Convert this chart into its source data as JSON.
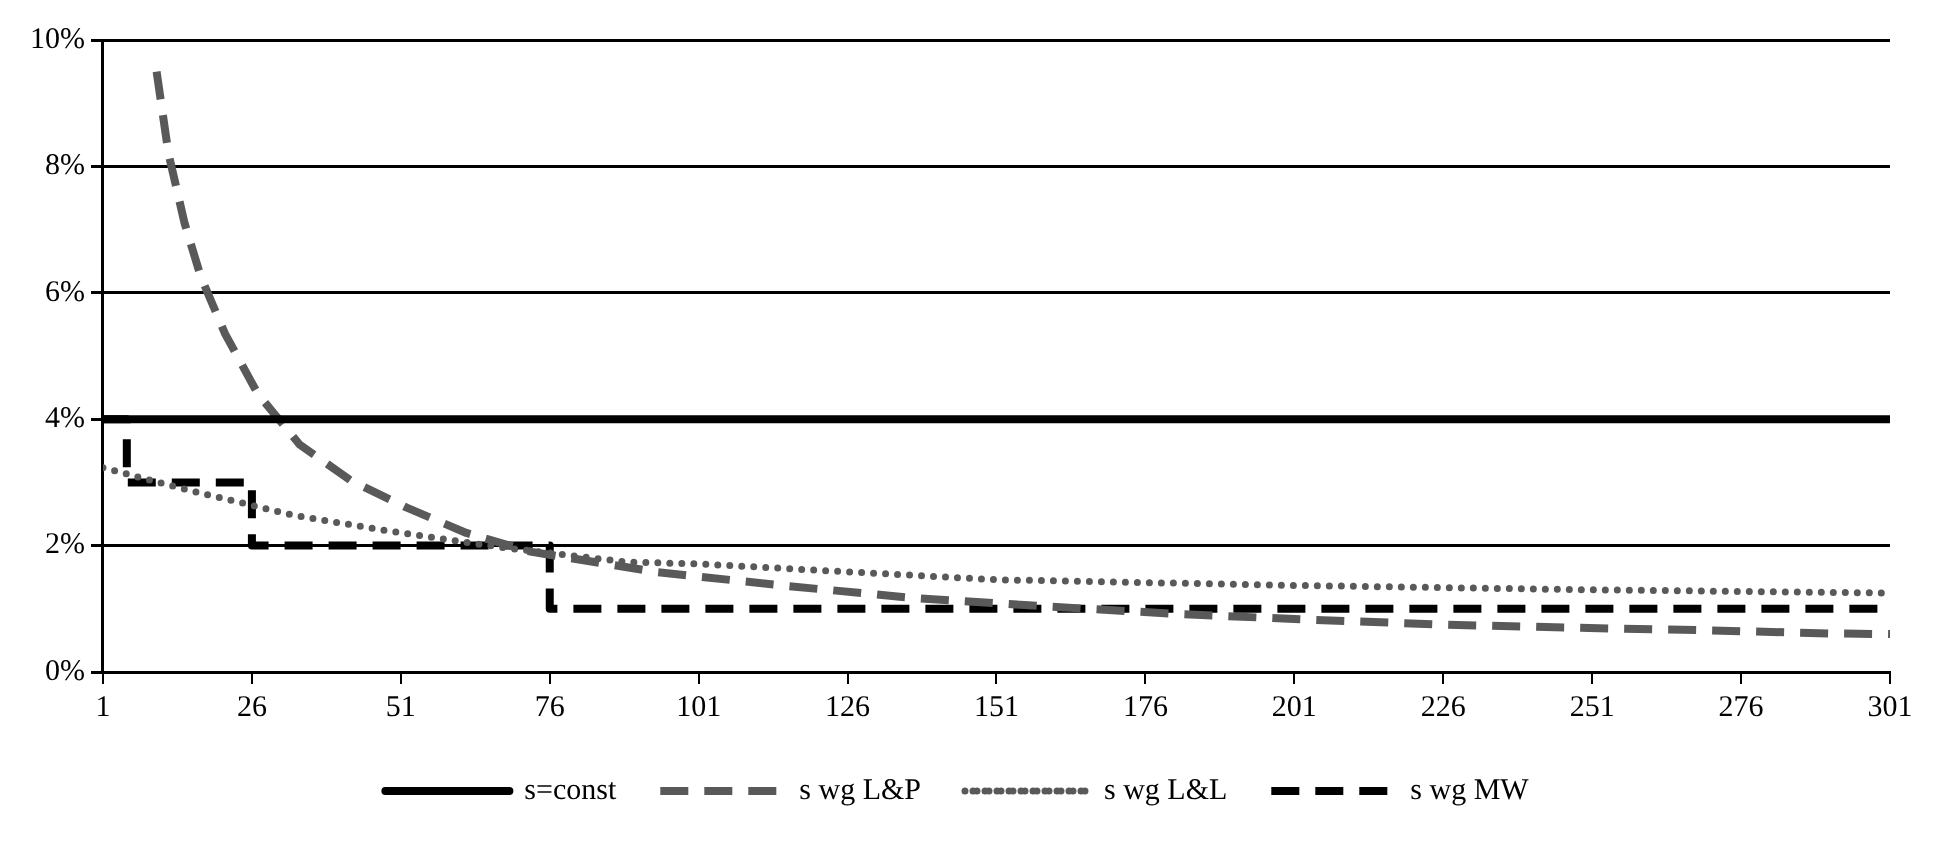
{
  "chart_data": {
    "type": "line",
    "xlim": [
      1,
      301
    ],
    "xticks": [
      1,
      26,
      51,
      76,
      101,
      126,
      151,
      176,
      201,
      226,
      251,
      276,
      301
    ],
    "ylim": [
      0,
      10
    ],
    "yticks": [
      {
        "value": 0,
        "label": "0%"
      },
      {
        "value": 2,
        "label": "2%"
      },
      {
        "value": 4,
        "label": "4%"
      },
      {
        "value": 6,
        "label": "6%"
      },
      {
        "value": 8,
        "label": "8%"
      },
      {
        "value": 10,
        "label": "10%"
      }
    ],
    "grid": "y",
    "legend": "bottom",
    "marker": "none",
    "series": [
      {
        "name": "s=const",
        "color": "#000000",
        "line_style": "solid",
        "x": [
          1,
          301
        ],
        "values": [
          4,
          4
        ]
      },
      {
        "name": "s wg L&P",
        "color": "#595959",
        "line_style": "dashed",
        "x": [
          10,
          12,
          14.7,
          17.4,
          21.5,
          27,
          34,
          42.6,
          52,
          62,
          73,
          94,
          116,
          137,
          159,
          181,
          203,
          226,
          248,
          270,
          291,
          301
        ],
        "values": [
          9.5,
          8.2,
          7.1,
          6.26,
          5.35,
          4.4,
          3.6,
          3.03,
          2.6,
          2.2,
          1.9,
          1.58,
          1.36,
          1.17,
          1.04,
          0.92,
          0.83,
          0.75,
          0.7,
          0.66,
          0.61,
          0.6
        ]
      },
      {
        "name": "s wg L&L",
        "color": "#595959",
        "line_style": "dotted",
        "x": [
          1,
          17,
          33,
          49,
          68,
          89,
          101,
          151,
          201,
          251,
          301
        ],
        "values": [
          3.23,
          2.84,
          2.48,
          2.23,
          1.97,
          1.74,
          1.71,
          1.46,
          1.37,
          1.3,
          1.25
        ]
      },
      {
        "name": "s wg MW",
        "type": "step",
        "color": "#000000",
        "line_style": "dashed",
        "x": [
          1,
          5,
          26,
          76,
          301
        ],
        "values": [
          4,
          3,
          2,
          1,
          1
        ]
      }
    ]
  }
}
